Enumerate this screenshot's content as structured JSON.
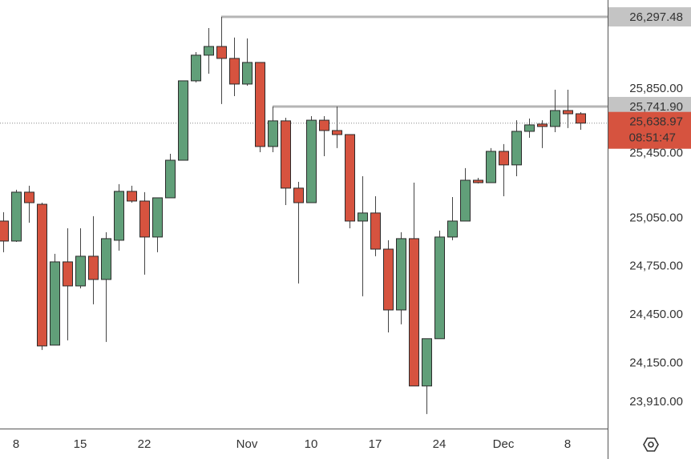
{
  "chart_data": {
    "type": "candlestick",
    "categories": [
      null,
      "8",
      null,
      null,
      null,
      null,
      "15",
      null,
      null,
      null,
      null,
      "22",
      null,
      null,
      null,
      null,
      null,
      null,
      null,
      "Nov",
      null,
      null,
      null,
      null,
      "10",
      null,
      null,
      null,
      null,
      "17",
      null,
      null,
      null,
      null,
      "24",
      null,
      null,
      null,
      null,
      "Dec",
      null,
      null,
      null,
      null,
      "8",
      null
    ],
    "series": {
      "open": [
        25032,
        24908,
        25211,
        25136,
        24263,
        24779,
        24630,
        24814,
        24670,
        24913,
        25216,
        25156,
        24933,
        25176,
        25409,
        25901,
        26060,
        26114,
        26040,
        25881,
        26015,
        25494,
        25653,
        25236,
        25146,
        25657,
        25593,
        25568,
        25032,
        25082,
        24858,
        24481,
        24923,
        24010,
        24303,
        24933,
        25032,
        25285,
        25270,
        25464,
        25380,
        25588,
        25633,
        25618,
        25717,
        25697
      ],
      "high": [
        25087,
        25226,
        25251,
        25146,
        24829,
        24987,
        24987,
        25062,
        24963,
        25261,
        25251,
        25211,
        25176,
        25449,
        25901,
        26079,
        26228,
        26297.48,
        26169,
        26164,
        26015,
        25741.9,
        25672,
        25275,
        25682,
        25682,
        25741.9,
        25568,
        25310,
        25186,
        24913,
        24963,
        25270,
        24303,
        24973,
        25181,
        25360,
        25300,
        25484,
        25509,
        25657,
        25667,
        25657,
        25846,
        25846,
        25707
      ],
      "low": [
        24839,
        24903,
        25022,
        24233,
        24263,
        24293,
        24615,
        24516,
        24283,
        24849,
        25146,
        24700,
        24839,
        25176,
        25409,
        25891,
        25945,
        25757,
        25806,
        25871,
        25459,
        25459,
        25131,
        24645,
        25146,
        25434,
        25484,
        24987,
        24566,
        24814,
        24342,
        24392,
        24010,
        23836,
        24303,
        24913,
        25032,
        25265,
        25270,
        25186,
        25310,
        25548,
        25484,
        25583,
        25608,
        25598
      ],
      "close": [
        24908,
        25211,
        25146,
        24258,
        24779,
        24630,
        24814,
        24670,
        24923,
        25216,
        25156,
        24933,
        25176,
        25409,
        25901,
        26060,
        26114,
        26040,
        25881,
        26015,
        25494,
        25653,
        25236,
        25146,
        25657,
        25593,
        25568,
        25032,
        25082,
        24858,
        24481,
        24923,
        24010,
        24303,
        24933,
        25032,
        25285,
        25270,
        25464,
        25380,
        25588,
        25628,
        25618,
        25717,
        25697,
        25638.97
      ]
    },
    "up_color": "#619f79",
    "down_color": "#d6533f",
    "ylim": [
      23746,
      26402
    ],
    "yticks": [
      {
        "value": 25850,
        "label": "25,850.00"
      },
      {
        "value": 25450,
        "label": "25,450.00"
      },
      {
        "value": 25050,
        "label": "25,050.00"
      },
      {
        "value": 24750,
        "label": "24,750.00"
      },
      {
        "value": 24450,
        "label": "24,450.00"
      },
      {
        "value": 24150,
        "label": "24,150.00"
      },
      {
        "value": 23910,
        "label": "23,910.00"
      }
    ],
    "price_lines": [
      {
        "value": 26297.48,
        "label": "26,297.48"
      },
      {
        "value": 25741.9,
        "label": "25,741.90"
      }
    ],
    "last_price": {
      "value": 25638.97,
      "label": "25,638.97",
      "countdown": "08:51:47"
    }
  }
}
